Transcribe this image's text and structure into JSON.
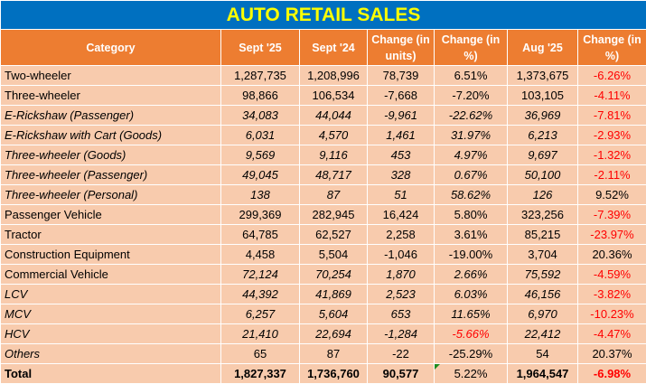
{
  "title": "AUTO RETAIL SALES",
  "colors": {
    "title_bg": "#0070C0",
    "title_text": "#FFFF00",
    "header_bg": "#ED7D31",
    "row_bg": "#F8CBAD",
    "negative": "#FF0000"
  },
  "columns": [
    "Category",
    "Sept '25",
    "Sept '24",
    "Change (in units)",
    "Change (in %)",
    "Aug '25",
    "Change (in %)"
  ],
  "rows": [
    {
      "cells": [
        "Two-wheeler",
        "1,287,735",
        "1,208,996",
        "78,739",
        "6.51%",
        "1,373,675",
        "-6.26%"
      ],
      "label_italic": false,
      "values_italic": false,
      "red": [
        6
      ]
    },
    {
      "cells": [
        "Three-wheeler",
        "98,866",
        "106,534",
        "-7,668",
        "-7.20%",
        "103,105",
        "-4.11%"
      ],
      "label_italic": false,
      "values_italic": false,
      "red": [
        6
      ]
    },
    {
      "cells": [
        "E-Rickshaw (Passenger)",
        "34,083",
        "44,044",
        "-9,961",
        "-22.62%",
        "36,969",
        "-7.81%"
      ],
      "label_italic": true,
      "values_italic": true,
      "red": [
        6
      ]
    },
    {
      "cells": [
        "E-Rickshaw with Cart (Goods)",
        "6,031",
        "4,570",
        "1,461",
        "31.97%",
        "6,213",
        "-2.93%"
      ],
      "label_italic": true,
      "values_italic": true,
      "red": [
        6
      ]
    },
    {
      "cells": [
        "Three-wheeler (Goods)",
        "9,569",
        "9,116",
        "453",
        "4.97%",
        "9,697",
        "-1.32%"
      ],
      "label_italic": true,
      "values_italic": true,
      "red": [
        6
      ]
    },
    {
      "cells": [
        "Three-wheeler (Passenger)",
        "49,045",
        "48,717",
        "328",
        "0.67%",
        "50,100",
        "-2.11%"
      ],
      "label_italic": true,
      "values_italic": true,
      "red": [
        6
      ]
    },
    {
      "cells": [
        "Three-wheeler (Personal)",
        "138",
        "87",
        "51",
        "58.62%",
        "126",
        "9.52%"
      ],
      "label_italic": true,
      "values_italic": true,
      "red": []
    },
    {
      "cells": [
        "Passenger Vehicle",
        "299,369",
        "282,945",
        "16,424",
        "5.80%",
        "323,256",
        "-7.39%"
      ],
      "label_italic": false,
      "values_italic": false,
      "red": [
        6
      ]
    },
    {
      "cells": [
        "Tractor",
        "64,785",
        "62,527",
        "2,258",
        "3.61%",
        "85,215",
        "-23.97%"
      ],
      "label_italic": false,
      "values_italic": false,
      "red": [
        6
      ]
    },
    {
      "cells": [
        "Construction Equipment",
        "4,458",
        "5,504",
        "-1,046",
        "-19.00%",
        "3,704",
        "20.36%"
      ],
      "label_italic": false,
      "values_italic": false,
      "red": []
    },
    {
      "cells": [
        "Commercial Vehicle",
        "72,124",
        "70,254",
        "1,870",
        "2.66%",
        "75,592",
        "-4.59%"
      ],
      "label_italic": false,
      "values_italic": true,
      "red": [
        6
      ]
    },
    {
      "cells": [
        "LCV",
        "44,392",
        "41,869",
        "2,523",
        "6.03%",
        "46,156",
        "-3.82%"
      ],
      "label_italic": true,
      "values_italic": true,
      "red": [
        6
      ]
    },
    {
      "cells": [
        "MCV",
        "6,257",
        "5,604",
        "653",
        "11.65%",
        "6,970",
        "-10.23%"
      ],
      "label_italic": true,
      "values_italic": true,
      "red": [
        6
      ]
    },
    {
      "cells": [
        "HCV",
        "21,410",
        "22,694",
        "-1,284",
        "-5.66%",
        "22,412",
        "-4.47%"
      ],
      "label_italic": true,
      "values_italic": true,
      "red": [
        4,
        6
      ]
    },
    {
      "cells": [
        "Others",
        "65",
        "87",
        "-22",
        "-25.29%",
        "54",
        "20.37%"
      ],
      "label_italic": true,
      "values_italic": false,
      "red": []
    }
  ],
  "total": {
    "cells": [
      "Total",
      "1,827,337",
      "1,736,760",
      "90,577",
      "5.22%",
      "1,964,547",
      "-6.98%"
    ],
    "red": [
      6
    ]
  }
}
